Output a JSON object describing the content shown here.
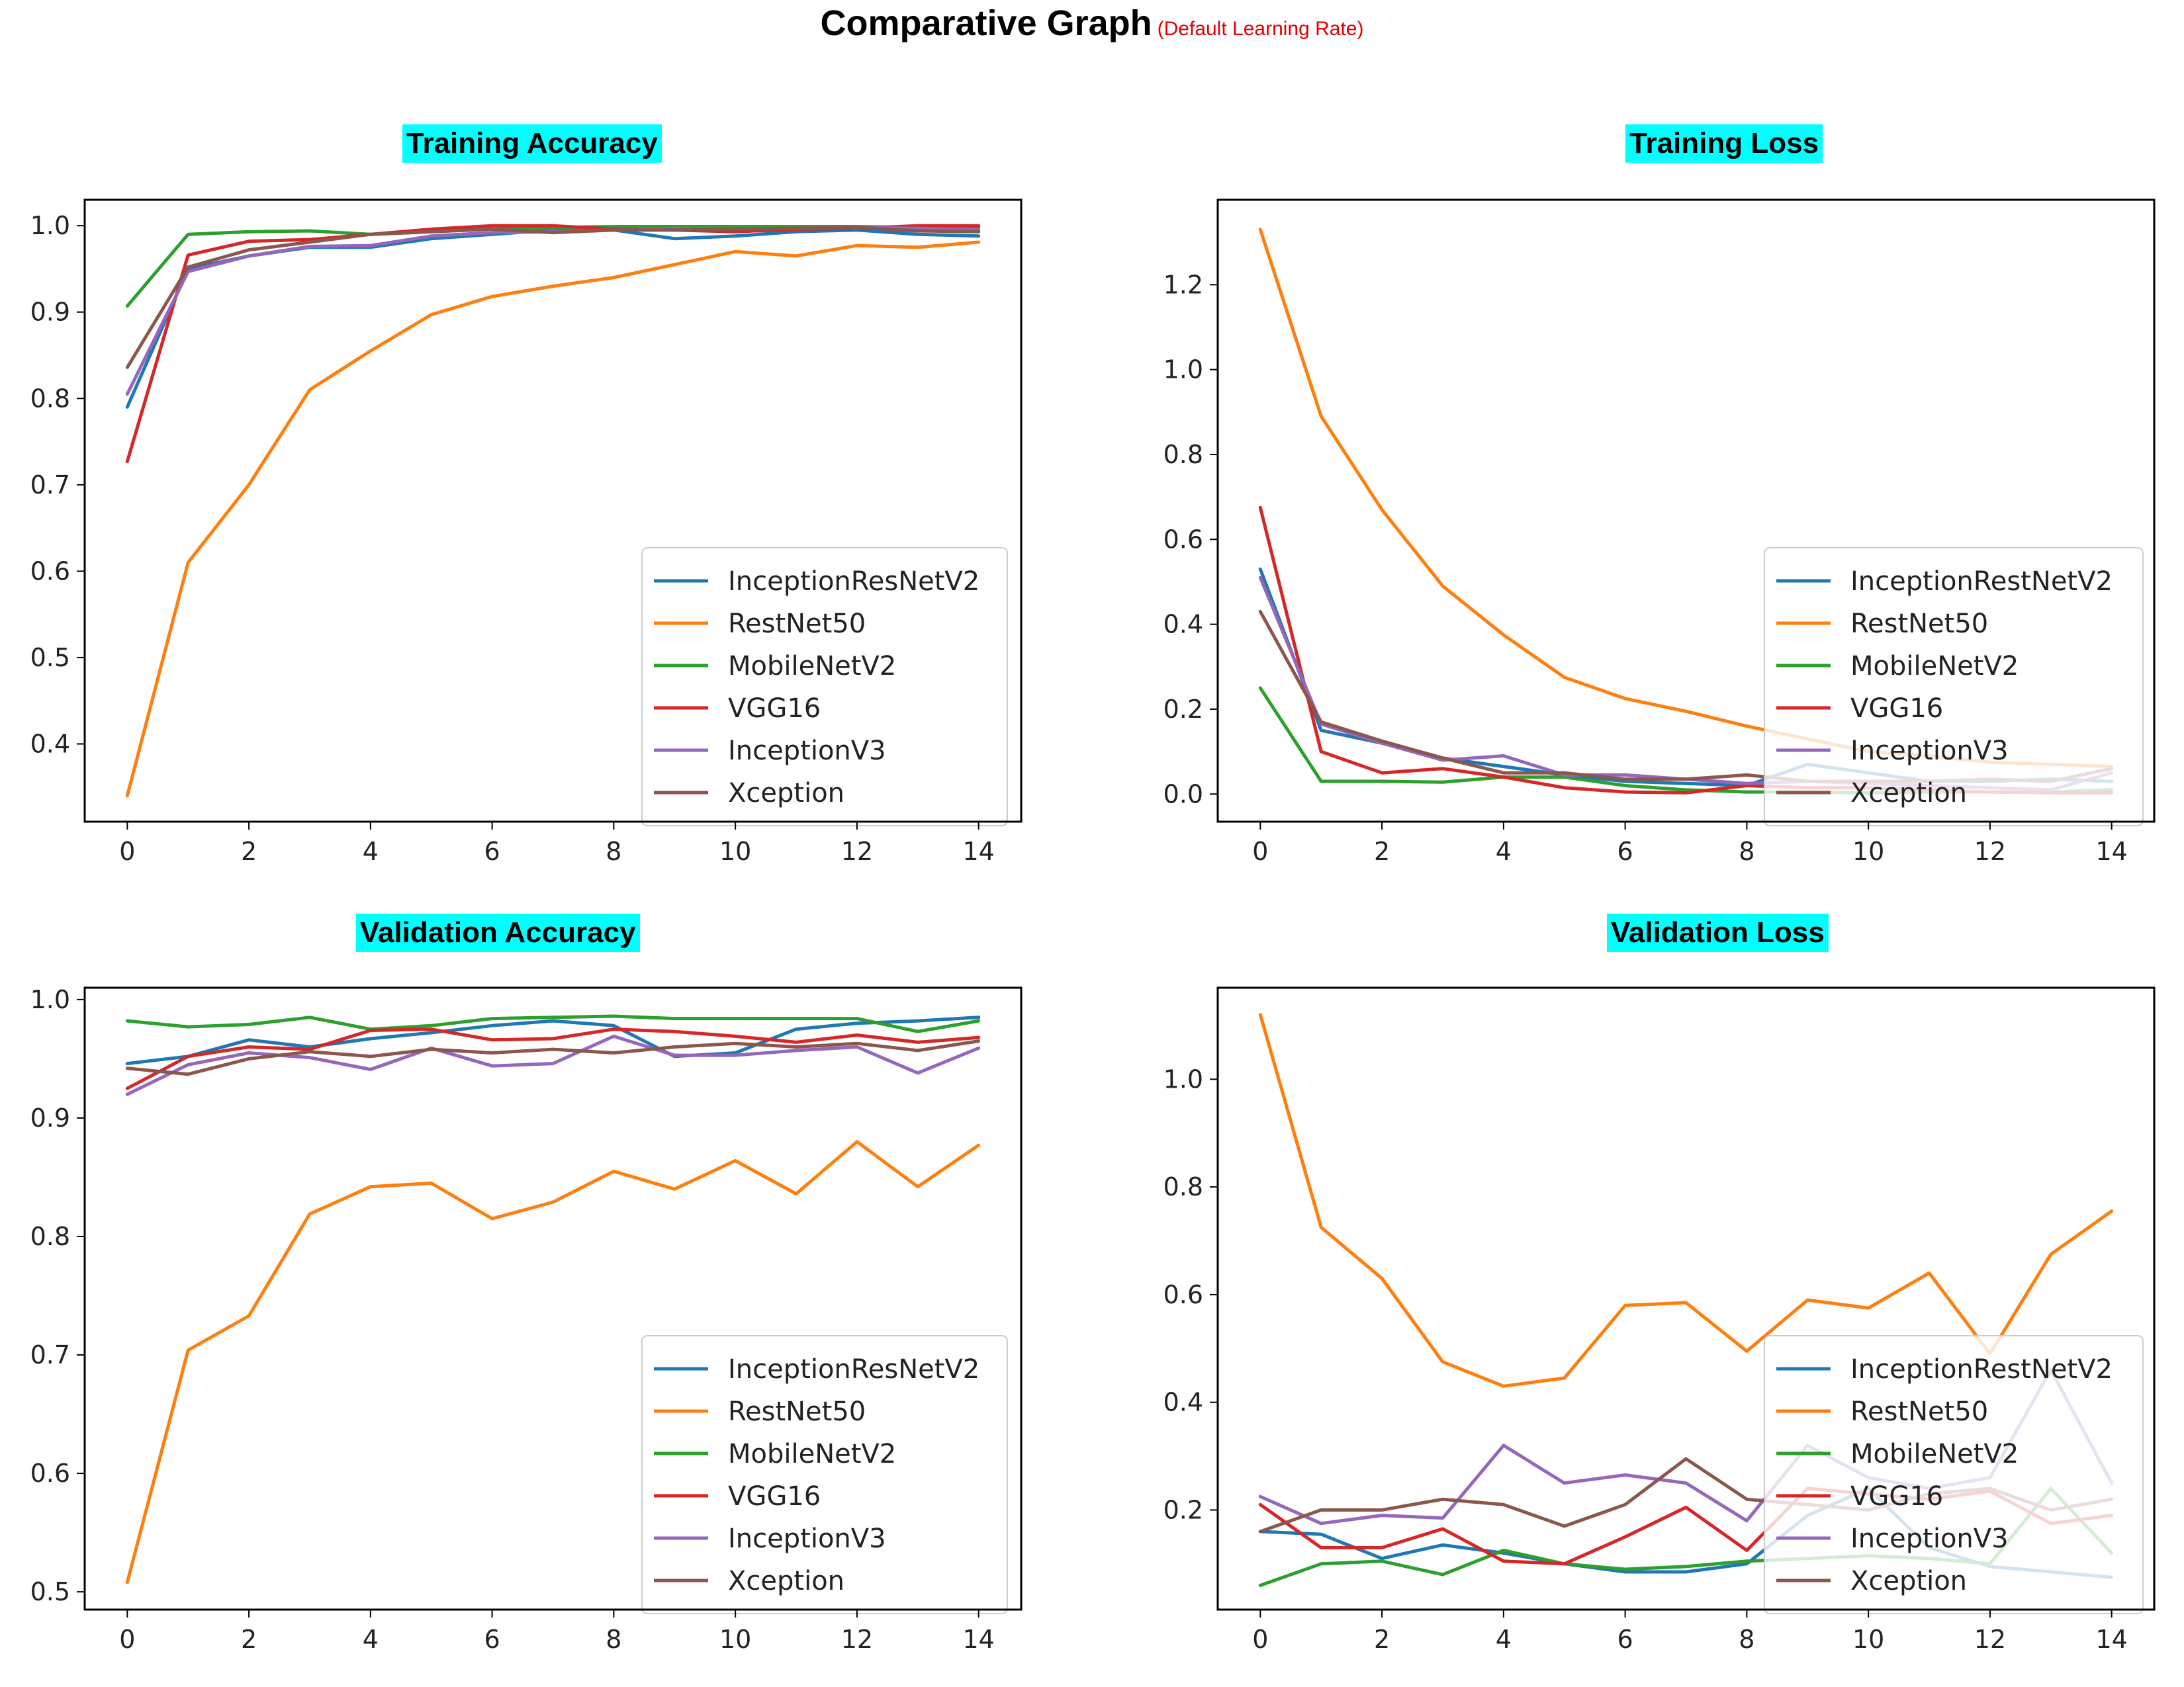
{
  "page": {
    "title": "Comparative Graph",
    "subtitle": "(Default Learning Rate)"
  },
  "chart_data": [
    {
      "type": "line",
      "title": "Training Accuracy",
      "x": [
        0,
        1,
        2,
        3,
        4,
        5,
        6,
        7,
        8,
        9,
        10,
        11,
        12,
        13,
        14
      ],
      "xticks": [
        0,
        2,
        4,
        6,
        8,
        10,
        12,
        14
      ],
      "xlim": [
        -0.7,
        14.7
      ],
      "ylim": [
        0.31,
        1.03
      ],
      "yticks": [
        "0.4",
        "0.5",
        "0.6",
        "0.7",
        "0.8",
        "0.9",
        "1.0"
      ],
      "grid": false,
      "legend_position": "lower-right",
      "series": [
        {
          "name": "InceptionResNetV2",
          "color": "#1f77b4",
          "values": [
            0.79,
            0.95,
            0.965,
            0.975,
            0.975,
            0.985,
            0.99,
            0.995,
            0.995,
            0.985,
            0.988,
            0.993,
            0.995,
            0.99,
            0.988
          ]
        },
        {
          "name": "RestNet50",
          "color": "#ff7f0e",
          "values": [
            0.34,
            0.61,
            0.7,
            0.81,
            0.855,
            0.897,
            0.918,
            0.93,
            0.94,
            0.955,
            0.97,
            0.965,
            0.977,
            0.975,
            0.981
          ]
        },
        {
          "name": "MobileNetV2",
          "color": "#2ca02c",
          "values": [
            0.907,
            0.99,
            0.993,
            0.994,
            0.99,
            0.993,
            0.996,
            0.998,
            0.999,
            0.999,
            0.999,
            0.999,
            0.999,
            0.998,
            0.998
          ]
        },
        {
          "name": "VGG16",
          "color": "#d62728",
          "values": [
            0.727,
            0.966,
            0.982,
            0.984,
            0.99,
            0.996,
            1.0,
            1.0,
            0.996,
            0.995,
            0.993,
            0.996,
            0.997,
            1.0,
            1.0
          ]
        },
        {
          "name": "InceptionV3",
          "color": "#9467bd",
          "values": [
            0.805,
            0.947,
            0.965,
            0.976,
            0.977,
            0.988,
            0.992,
            0.993,
            0.995,
            0.996,
            0.996,
            0.997,
            0.998,
            0.997,
            0.995
          ]
        },
        {
          "name": "Xception",
          "color": "#8c564b",
          "values": [
            0.836,
            0.952,
            0.972,
            0.981,
            0.99,
            0.993,
            0.996,
            0.992,
            0.995,
            0.995,
            0.996,
            0.997,
            0.998,
            0.994,
            0.993
          ]
        }
      ]
    },
    {
      "type": "line",
      "title": "Training Loss",
      "x": [
        0,
        1,
        2,
        3,
        4,
        5,
        6,
        7,
        8,
        9,
        10,
        11,
        12,
        13,
        14
      ],
      "xticks": [
        0,
        2,
        4,
        6,
        8,
        10,
        12,
        14
      ],
      "xlim": [
        -0.7,
        14.7
      ],
      "ylim": [
        -0.065,
        1.4
      ],
      "yticks": [
        "0.0",
        "0.2",
        "0.4",
        "0.6",
        "0.8",
        "1.0",
        "1.2"
      ],
      "grid": false,
      "legend_position": "lower-right",
      "series": [
        {
          "name": "InceptionRestNetV2",
          "color": "#1f77b4",
          "values": [
            0.53,
            0.15,
            0.12,
            0.085,
            0.065,
            0.045,
            0.03,
            0.025,
            0.02,
            0.07,
            0.05,
            0.03,
            0.03,
            0.035,
            0.03
          ]
        },
        {
          "name": "RestNet50",
          "color": "#ff7f0e",
          "values": [
            1.33,
            0.89,
            0.67,
            0.49,
            0.375,
            0.275,
            0.225,
            0.195,
            0.16,
            0.13,
            0.1,
            0.09,
            0.075,
            0.07,
            0.065
          ]
        },
        {
          "name": "MobileNetV2",
          "color": "#2ca02c",
          "values": [
            0.25,
            0.03,
            0.03,
            0.028,
            0.04,
            0.04,
            0.02,
            0.01,
            0.005,
            0.005,
            0.003,
            0.005,
            0.005,
            0.005,
            0.01
          ]
        },
        {
          "name": "VGG16",
          "color": "#d62728",
          "values": [
            0.675,
            0.1,
            0.05,
            0.06,
            0.04,
            0.015,
            0.005,
            0.003,
            0.02,
            0.015,
            0.015,
            0.01,
            0.005,
            0.003,
            0.003
          ]
        },
        {
          "name": "InceptionV3",
          "color": "#9467bd",
          "values": [
            0.51,
            0.165,
            0.12,
            0.08,
            0.09,
            0.045,
            0.045,
            0.035,
            0.025,
            0.03,
            0.025,
            0.02,
            0.015,
            0.01,
            0.05
          ]
        },
        {
          "name": "Xception",
          "color": "#8c564b",
          "values": [
            0.43,
            0.17,
            0.125,
            0.085,
            0.05,
            0.05,
            0.035,
            0.035,
            0.045,
            0.03,
            0.03,
            0.03,
            0.035,
            0.03,
            0.06
          ]
        }
      ]
    },
    {
      "type": "line",
      "title": "Validation Accuracy",
      "x": [
        0,
        1,
        2,
        3,
        4,
        5,
        6,
        7,
        8,
        9,
        10,
        11,
        12,
        13,
        14
      ],
      "xticks": [
        0,
        2,
        4,
        6,
        8,
        10,
        12,
        14
      ],
      "xlim": [
        -0.7,
        14.7
      ],
      "ylim": [
        0.485,
        1.01
      ],
      "yticks": [
        "0.5",
        "0.6",
        "0.7",
        "0.8",
        "0.9",
        "1.0"
      ],
      "grid": false,
      "legend_position": "lower-right",
      "series": [
        {
          "name": "InceptionResNetV2",
          "color": "#1f77b4",
          "values": [
            0.946,
            0.952,
            0.966,
            0.96,
            0.967,
            0.972,
            0.978,
            0.982,
            0.978,
            0.952,
            0.955,
            0.975,
            0.98,
            0.982,
            0.985
          ]
        },
        {
          "name": "RestNet50",
          "color": "#ff7f0e",
          "values": [
            0.508,
            0.704,
            0.733,
            0.819,
            0.842,
            0.845,
            0.815,
            0.829,
            0.855,
            0.84,
            0.864,
            0.836,
            0.88,
            0.842,
            0.877
          ]
        },
        {
          "name": "MobileNetV2",
          "color": "#2ca02c",
          "values": [
            0.982,
            0.977,
            0.979,
            0.985,
            0.975,
            0.978,
            0.984,
            0.985,
            0.986,
            0.984,
            0.984,
            0.984,
            0.984,
            0.973,
            0.982
          ]
        },
        {
          "name": "VGG16",
          "color": "#d62728",
          "values": [
            0.925,
            0.952,
            0.96,
            0.958,
            0.974,
            0.975,
            0.966,
            0.967,
            0.975,
            0.973,
            0.969,
            0.964,
            0.97,
            0.964,
            0.968
          ]
        },
        {
          "name": "InceptionV3",
          "color": "#9467bd",
          "values": [
            0.92,
            0.945,
            0.955,
            0.951,
            0.941,
            0.959,
            0.944,
            0.946,
            0.969,
            0.953,
            0.953,
            0.957,
            0.96,
            0.938,
            0.959
          ]
        },
        {
          "name": "Xception",
          "color": "#8c564b",
          "values": [
            0.942,
            0.937,
            0.95,
            0.956,
            0.952,
            0.958,
            0.955,
            0.958,
            0.955,
            0.96,
            0.963,
            0.96,
            0.963,
            0.957,
            0.965
          ]
        }
      ]
    },
    {
      "type": "line",
      "title": "Validation Loss",
      "x": [
        0,
        1,
        2,
        3,
        4,
        5,
        6,
        7,
        8,
        9,
        10,
        11,
        12,
        13,
        14
      ],
      "xticks": [
        0,
        2,
        4,
        6,
        8,
        10,
        12,
        14
      ],
      "xlim": [
        -0.7,
        14.7
      ],
      "ylim": [
        0.015,
        1.17
      ],
      "yticks": [
        "0.2",
        "0.4",
        "0.6",
        "0.8",
        "1.0"
      ],
      "grid": false,
      "legend_position": "lower-right",
      "series": [
        {
          "name": "InceptionRestNetV2",
          "color": "#1f77b4",
          "values": [
            0.16,
            0.155,
            0.11,
            0.135,
            0.12,
            0.1,
            0.085,
            0.085,
            0.1,
            0.19,
            0.24,
            0.13,
            0.095,
            0.085,
            0.075
          ]
        },
        {
          "name": "RestNet50",
          "color": "#ff7f0e",
          "values": [
            1.12,
            0.725,
            0.63,
            0.475,
            0.43,
            0.445,
            0.58,
            0.585,
            0.495,
            0.59,
            0.575,
            0.64,
            0.49,
            0.675,
            0.755
          ]
        },
        {
          "name": "MobileNetV2",
          "color": "#2ca02c",
          "values": [
            0.06,
            0.1,
            0.105,
            0.08,
            0.125,
            0.1,
            0.09,
            0.095,
            0.105,
            0.11,
            0.115,
            0.11,
            0.1,
            0.24,
            0.12
          ]
        },
        {
          "name": "VGG16",
          "color": "#d62728",
          "values": [
            0.21,
            0.13,
            0.13,
            0.165,
            0.105,
            0.1,
            0.15,
            0.205,
            0.125,
            0.24,
            0.23,
            0.22,
            0.235,
            0.175,
            0.19
          ]
        },
        {
          "name": "InceptionV3",
          "color": "#9467bd",
          "values": [
            0.225,
            0.175,
            0.19,
            0.185,
            0.32,
            0.25,
            0.265,
            0.25,
            0.18,
            0.32,
            0.26,
            0.24,
            0.26,
            0.46,
            0.25
          ]
        },
        {
          "name": "Xception",
          "color": "#8c564b",
          "values": [
            0.16,
            0.2,
            0.2,
            0.22,
            0.21,
            0.17,
            0.21,
            0.295,
            0.22,
            0.21,
            0.2,
            0.23,
            0.24,
            0.2,
            0.22
          ]
        }
      ]
    }
  ]
}
